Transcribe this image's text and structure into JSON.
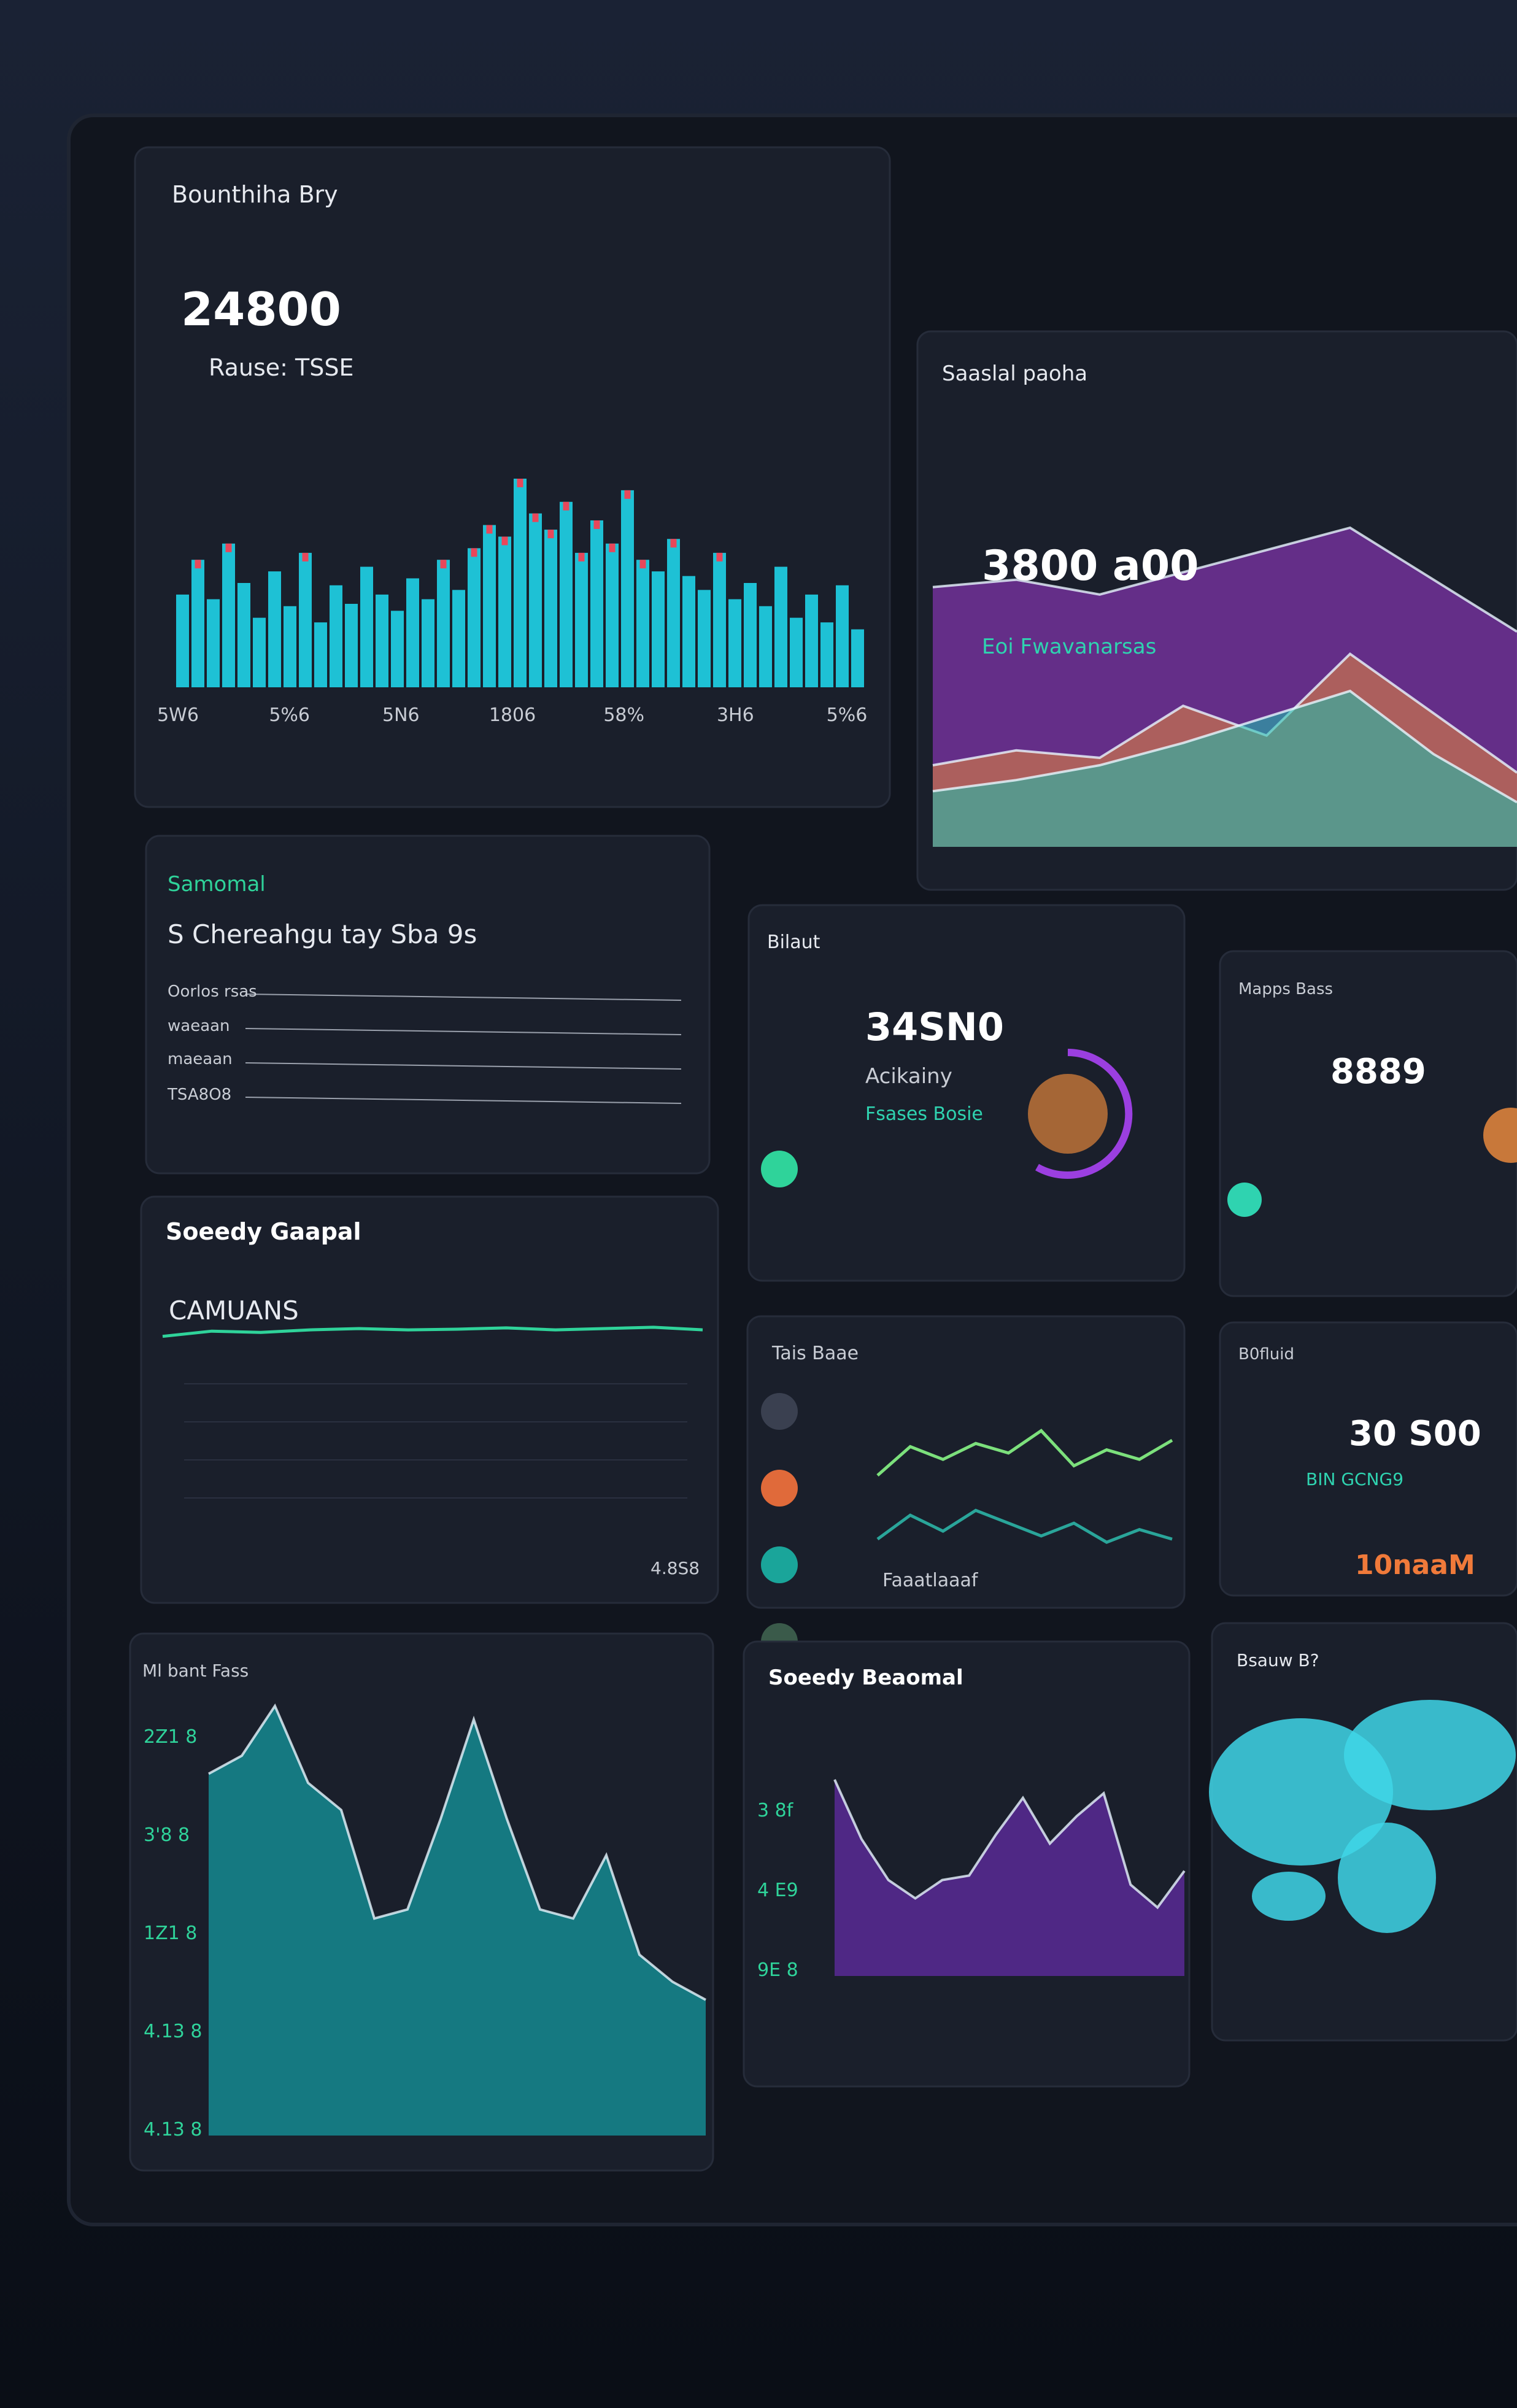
{
  "panels": [
    {
      "title": "Bounthiha Bry",
      "texts": [
        "24800",
        "Rause: TSSE"
      ],
      "x_labels": [
        "5W6",
        "5%6",
        "5N6",
        "1806",
        "58%",
        "3H6",
        "5%6"
      ],
      "chart": {
        "type": "bar",
        "color": "#1fd3e8",
        "values": [
          40,
          55,
          38,
          62,
          45,
          30,
          50,
          35,
          58,
          28,
          44,
          36,
          52,
          40,
          33,
          47,
          38,
          55,
          42,
          60,
          70,
          65,
          90,
          75,
          68,
          80,
          58,
          72,
          62,
          85,
          55,
          50,
          64,
          48,
          42,
          58,
          38,
          45,
          35,
          52,
          30,
          40,
          28,
          44,
          25
        ]
      }
    },
    {
      "title": "Saaslal paoha",
      "texts": [
        "3800 a00",
        "Eoi Fwavanarsas"
      ],
      "chart": {
        "type": "area",
        "series": [
          {
            "color": "#a23bd6",
            "values": [
              70,
              72,
              68,
              74,
              80,
              86,
              72,
              58
            ]
          },
          {
            "color": "#e8893a",
            "values": [
              22,
              26,
              24,
              38,
              30,
              52,
              36,
              20
            ]
          },
          {
            "color": "#19c2b0",
            "values": [
              15,
              18,
              22,
              28,
              35,
              42,
              25,
              12
            ]
          }
        ]
      }
    },
    {
      "title": "Samomal",
      "texts": [
        "S Chereahgu tay Sba 9s",
        "Oorlos rsas",
        "waeaan",
        "maeaan",
        "TSA8O8"
      ]
    },
    {
      "title": "Bilaut",
      "texts": [
        "34SN0",
        "Acikainy",
        "Fsases Bosie"
      ]
    },
    {
      "title": "Mapps Bass",
      "texts": [
        "8889"
      ]
    },
    {
      "title": "Soeedy Gaapal",
      "texts": [
        "CAMUANS",
        "4.8S8"
      ],
      "chart": {
        "type": "line",
        "series": [
          {
            "color": "#2fd39a",
            "values": [
              40,
              48,
              46,
              50,
              52,
              50,
              51,
              53,
              50,
              52,
              54,
              50
            ]
          }
        ]
      }
    },
    {
      "title": "Tais Baae",
      "texts": [
        "Faaatlaaaf"
      ],
      "chart": {
        "type": "line",
        "series": [
          {
            "color": "#7ce07c",
            "values": [
              60,
              78,
              70,
              80,
              74,
              88,
              66,
              76,
              70,
              82
            ]
          },
          {
            "color": "#2aa59a",
            "values": [
              20,
              35,
              25,
              38,
              30,
              22,
              30,
              18,
              26,
              20
            ]
          }
        ]
      }
    },
    {
      "title": "B0fluid",
      "texts": [
        "30 S00",
        "BIN GCNG9",
        "10naaM"
      ]
    },
    {
      "title": "Ml bant Fass",
      "axis_labels": [
        "2Z1 8",
        "3'8 8",
        "1Z1 8",
        "4.13 8",
        "4.13 8"
      ],
      "chart": {
        "type": "area",
        "color": "#12c2c8",
        "values": [
          80,
          84,
          95,
          78,
          72,
          48,
          50,
          70,
          92,
          70,
          50,
          48,
          62,
          40,
          34,
          30
        ]
      }
    },
    {
      "title": "Soeedy Beaomal",
      "axis_labels": [
        "3 8f",
        "4 E9",
        "9E 8"
      ],
      "chart": {
        "type": "area",
        "color": "#7b2fd0",
        "values": [
          86,
          60,
          42,
          34,
          42,
          44,
          62,
          78,
          58,
          70,
          80,
          40,
          30,
          46
        ]
      }
    },
    {
      "title": "Bsauw B?"
    }
  ]
}
